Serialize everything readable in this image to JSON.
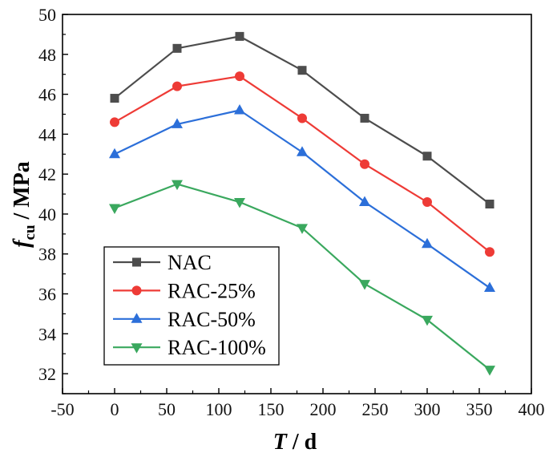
{
  "chart_data": {
    "type": "line",
    "xlabel": {
      "symbol": "T",
      "unit": " / d"
    },
    "ylabel": {
      "symbol": "f",
      "subscript": "cu",
      "unit": " / MPa"
    },
    "xlim": [
      -50,
      400
    ],
    "ylim": [
      31,
      50
    ],
    "xticks": [
      -50,
      0,
      50,
      100,
      150,
      200,
      250,
      300,
      350,
      400
    ],
    "yticks": [
      32,
      34,
      36,
      38,
      40,
      42,
      44,
      46,
      48,
      50
    ],
    "grid": false,
    "legend": "lower-left",
    "x": [
      0,
      60,
      120,
      180,
      240,
      300,
      360
    ],
    "series": [
      {
        "name": "NAC",
        "marker": "square",
        "color": "#4d4d4d",
        "values": [
          45.8,
          48.3,
          48.9,
          47.2,
          44.8,
          42.9,
          40.5
        ]
      },
      {
        "name": "RAC-25%",
        "marker": "circle",
        "color": "#ee3b36",
        "values": [
          44.6,
          46.4,
          46.9,
          44.8,
          42.5,
          40.6,
          38.1
        ]
      },
      {
        "name": "RAC-50%",
        "marker": "triangle-up",
        "color": "#2c6fd9",
        "values": [
          43.0,
          44.5,
          45.2,
          43.1,
          40.6,
          38.5,
          36.3
        ]
      },
      {
        "name": "RAC-100%",
        "marker": "triangle-down",
        "color": "#3aa85e",
        "values": [
          40.3,
          41.5,
          40.6,
          39.3,
          36.5,
          34.7,
          32.2
        ]
      }
    ]
  }
}
